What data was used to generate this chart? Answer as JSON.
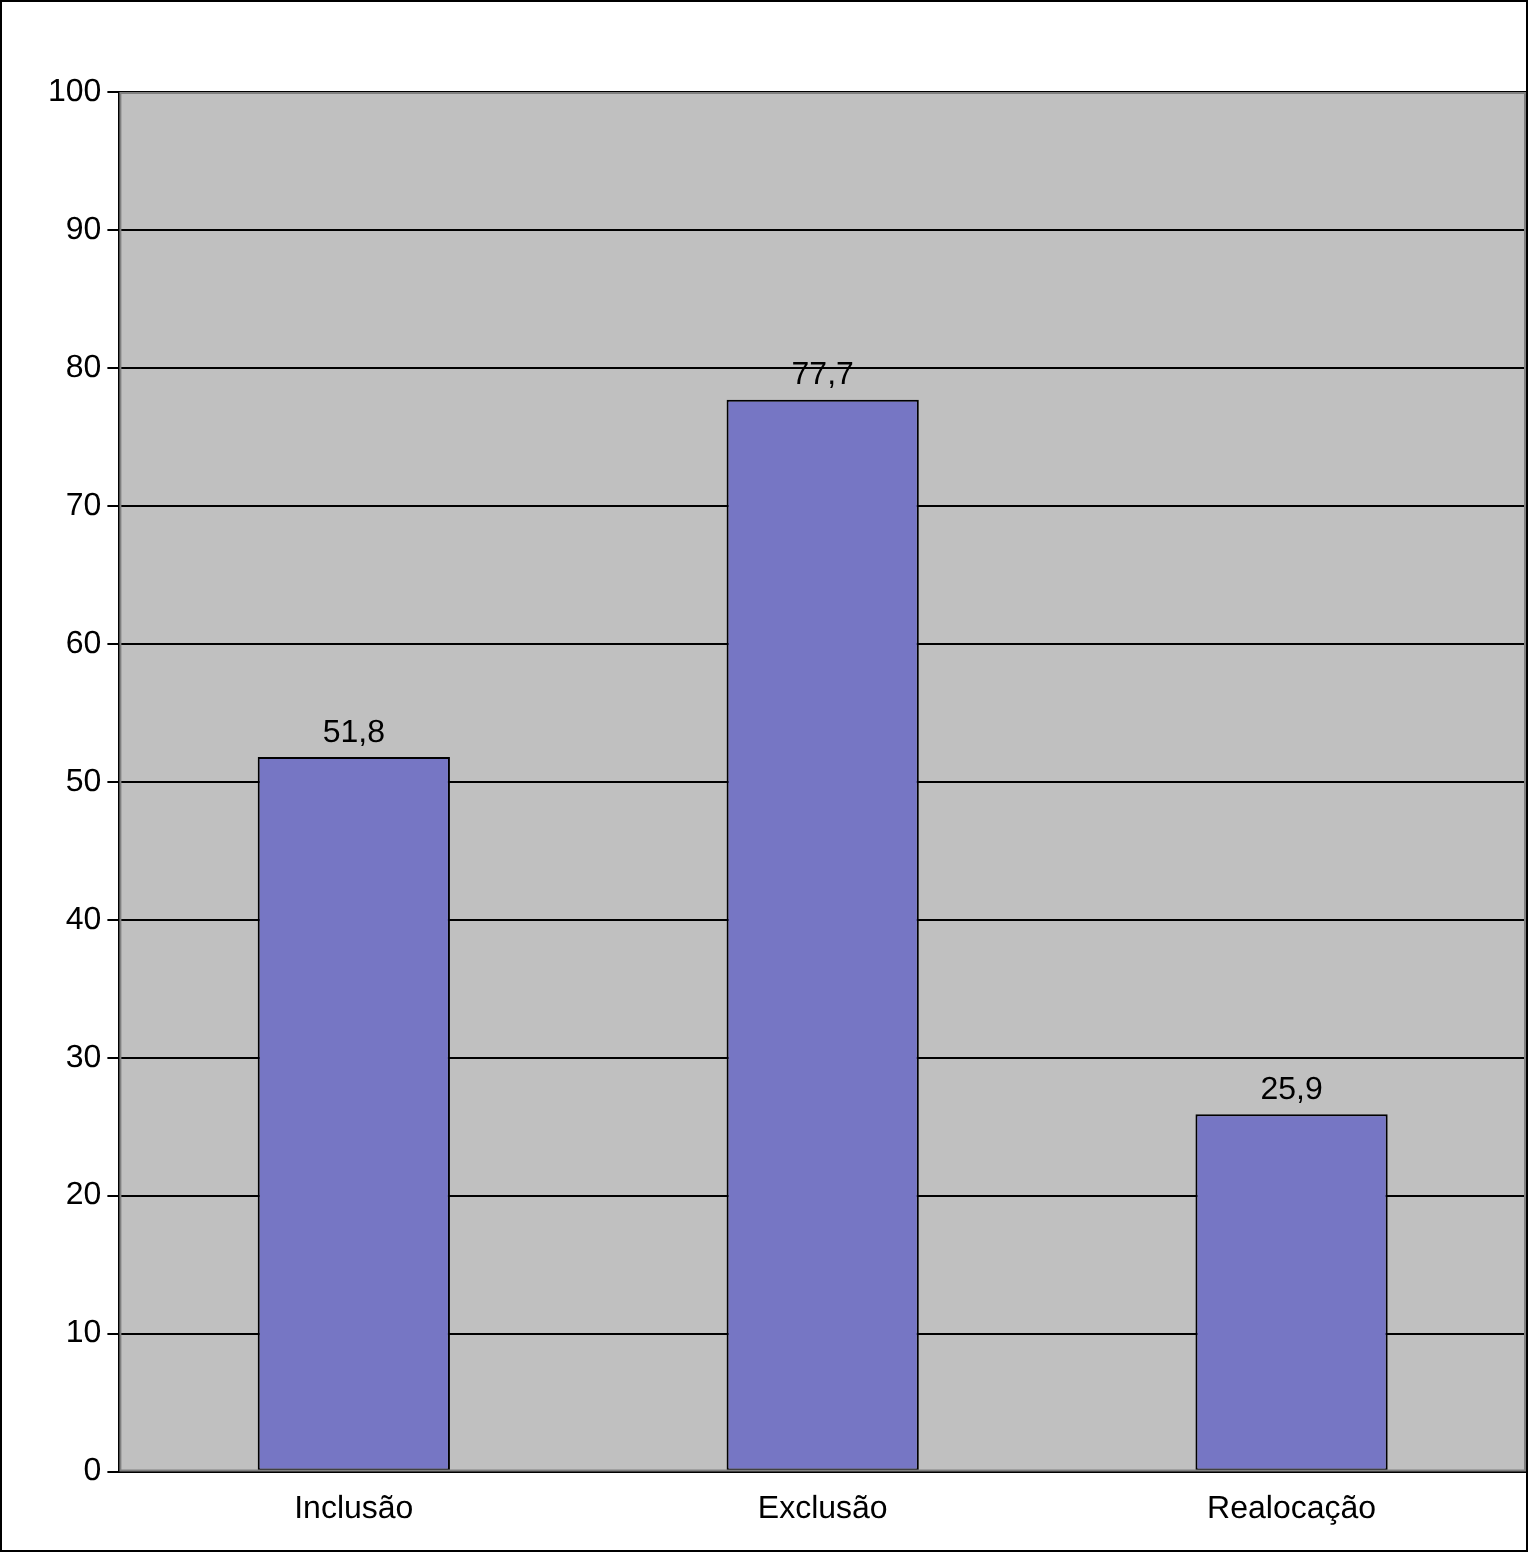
{
  "chart_data": {
    "type": "bar",
    "categories": [
      "Inclusão",
      "Exclusão",
      "Realocação"
    ],
    "values": [
      51.8,
      77.7,
      25.9
    ],
    "value_labels": [
      "51,8",
      "77,7",
      "25,9"
    ],
    "color": "#7676c4",
    "ylim": [
      0,
      100
    ],
    "yticks": [
      0,
      10,
      20,
      30,
      40,
      50,
      60,
      70,
      80,
      90,
      100
    ],
    "grid": "y",
    "legend": false
  }
}
